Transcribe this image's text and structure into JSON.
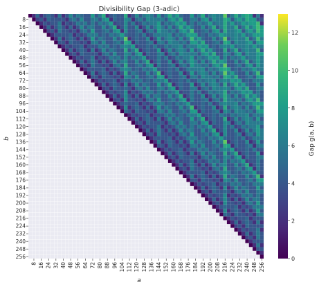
{
  "chart_data": {
    "type": "heatmap",
    "title": "Divisibility Gap (3-adic)",
    "xlabel": "a",
    "ylabel": "b",
    "colorbar_label": "Gap g(a, b)",
    "colormap": "viridis",
    "value_range": [
      0,
      13
    ],
    "grid_n": 64,
    "a_range": [
      4,
      256
    ],
    "b_range": [
      4,
      256
    ],
    "a_step": 4,
    "b_step": 4,
    "masked_region": "lower-left triangle (a < b)",
    "mask_color": "#eaeaf2",
    "x_tick_labels": [
      "8",
      "16",
      "24",
      "32",
      "40",
      "48",
      "56",
      "64",
      "72",
      "80",
      "88",
      "96",
      "104",
      "112",
      "120",
      "128",
      "136",
      "144",
      "152",
      "160",
      "168",
      "176",
      "184",
      "192",
      "200",
      "208",
      "216",
      "224",
      "232",
      "240",
      "248",
      "256"
    ],
    "y_tick_labels": [
      "8",
      "16",
      "24",
      "32",
      "40",
      "48",
      "56",
      "64",
      "72",
      "80",
      "88",
      "96",
      "104",
      "112",
      "120",
      "128",
      "136",
      "144",
      "152",
      "160",
      "168",
      "176",
      "184",
      "192",
      "200",
      "208",
      "216",
      "224",
      "232",
      "240",
      "248",
      "256"
    ],
    "colorbar_ticks": [
      "0",
      "2",
      "4",
      "6",
      "8",
      "10",
      "12"
    ]
  }
}
